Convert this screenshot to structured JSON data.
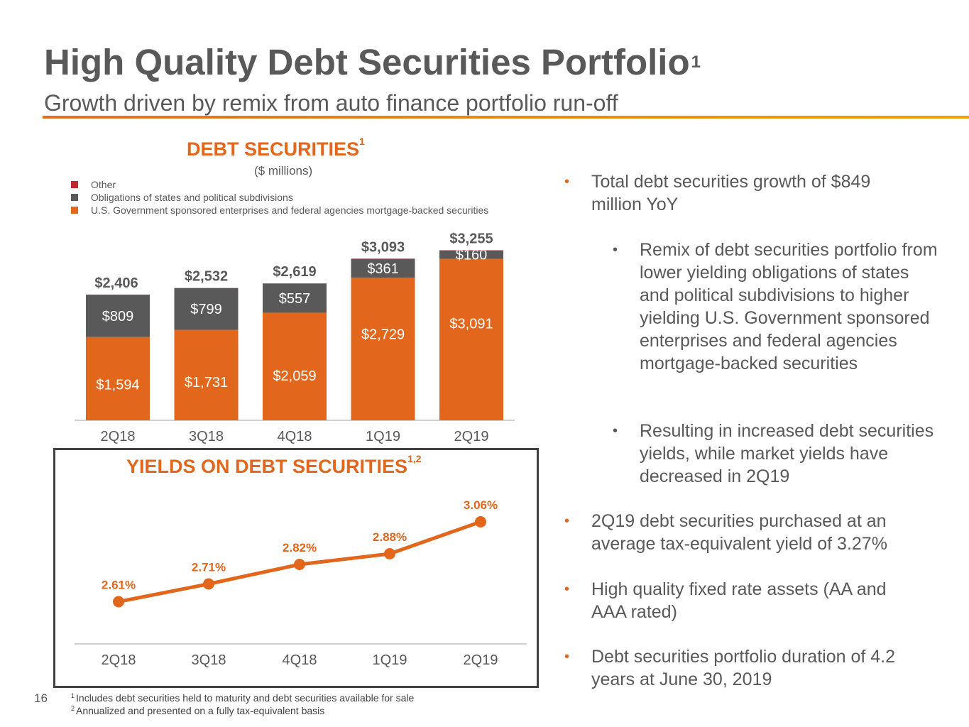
{
  "header": {
    "title": "High Quality Debt Securities Portfolio",
    "title_sup": "1",
    "subtitle": "Growth driven by remix from auto finance portfolio run-off"
  },
  "colors": {
    "orange": "#e2661b",
    "gray": "#595959",
    "red": "#c0282d",
    "accent_rule": "#f0a000"
  },
  "chart_data": [
    {
      "type": "bar",
      "stacked": true,
      "title": "DEBT SECURITIES",
      "title_sup": "1",
      "units": "($ millions)",
      "categories": [
        "2Q18",
        "3Q18",
        "4Q18",
        "1Q19",
        "2Q19"
      ],
      "series": [
        {
          "name": "U.S. Government sponsored enterprises and federal agencies mortgage-backed securities",
          "color": "#e2661b",
          "values": [
            1594,
            1731,
            2059,
            2729,
            3091
          ],
          "labels": [
            "$1,594",
            "$1,731",
            "$2,059",
            "$2,729",
            "$3,091"
          ]
        },
        {
          "name": "Obligations of states and political subdivisions",
          "color": "#595959",
          "values": [
            809,
            799,
            557,
            361,
            160
          ],
          "labels": [
            "$809",
            "$799",
            "$557",
            "$361",
            "$160"
          ]
        },
        {
          "name": "Other",
          "color": "#c0282d",
          "values": [
            3,
            2,
            3,
            3,
            4
          ],
          "labels": [
            "",
            "",
            "",
            "",
            ""
          ]
        }
      ],
      "totals": [
        "$2,406",
        "$2,532",
        "$2,619",
        "$3,093",
        "$3,255"
      ],
      "total_values": [
        2406,
        2532,
        2619,
        3093,
        3255
      ],
      "ylim": [
        0,
        3600
      ],
      "legend_position": "top-left"
    },
    {
      "type": "line",
      "title": "YIELDS ON DEBT SECURITIES",
      "title_sup": "1,2",
      "categories": [
        "2Q18",
        "3Q18",
        "4Q18",
        "1Q19",
        "2Q19"
      ],
      "values": [
        2.61,
        2.71,
        2.82,
        2.88,
        3.06
      ],
      "labels": [
        "2.61%",
        "2.71%",
        "2.82%",
        "2.88%",
        "3.06%"
      ],
      "color": "#e2661b",
      "ylim": [
        2.4,
        3.2
      ]
    }
  ],
  "bullets": [
    {
      "level": 1,
      "text": "Total debt securities growth of $849 million YoY"
    },
    {
      "level": 2,
      "text": "Remix of debt securities portfolio from lower yielding obligations of states and political subdivisions to higher yielding U.S. Government sponsored enterprises and federal agencies mortgage-backed securities"
    },
    {
      "level": 2,
      "text": "Resulting in increased debt securities yields, while market yields have decreased in 2Q19"
    },
    {
      "level": 1,
      "text": "2Q19 debt securities purchased at an average tax-equivalent yield of 3.27%"
    },
    {
      "level": 1,
      "text": "High quality fixed rate assets (AA and AAA rated)"
    },
    {
      "level": 1,
      "text": "Debt securities portfolio duration of 4.2 years at June 30, 2019"
    }
  ],
  "bullet_marker": "•",
  "footer": {
    "page_number": "16",
    "notes": [
      {
        "num": "1",
        "text": "Includes debt securities held to maturity and debt securities available for sale"
      },
      {
        "num": "2",
        "text": "Annualized and presented on a fully tax-equivalent basis"
      }
    ]
  }
}
